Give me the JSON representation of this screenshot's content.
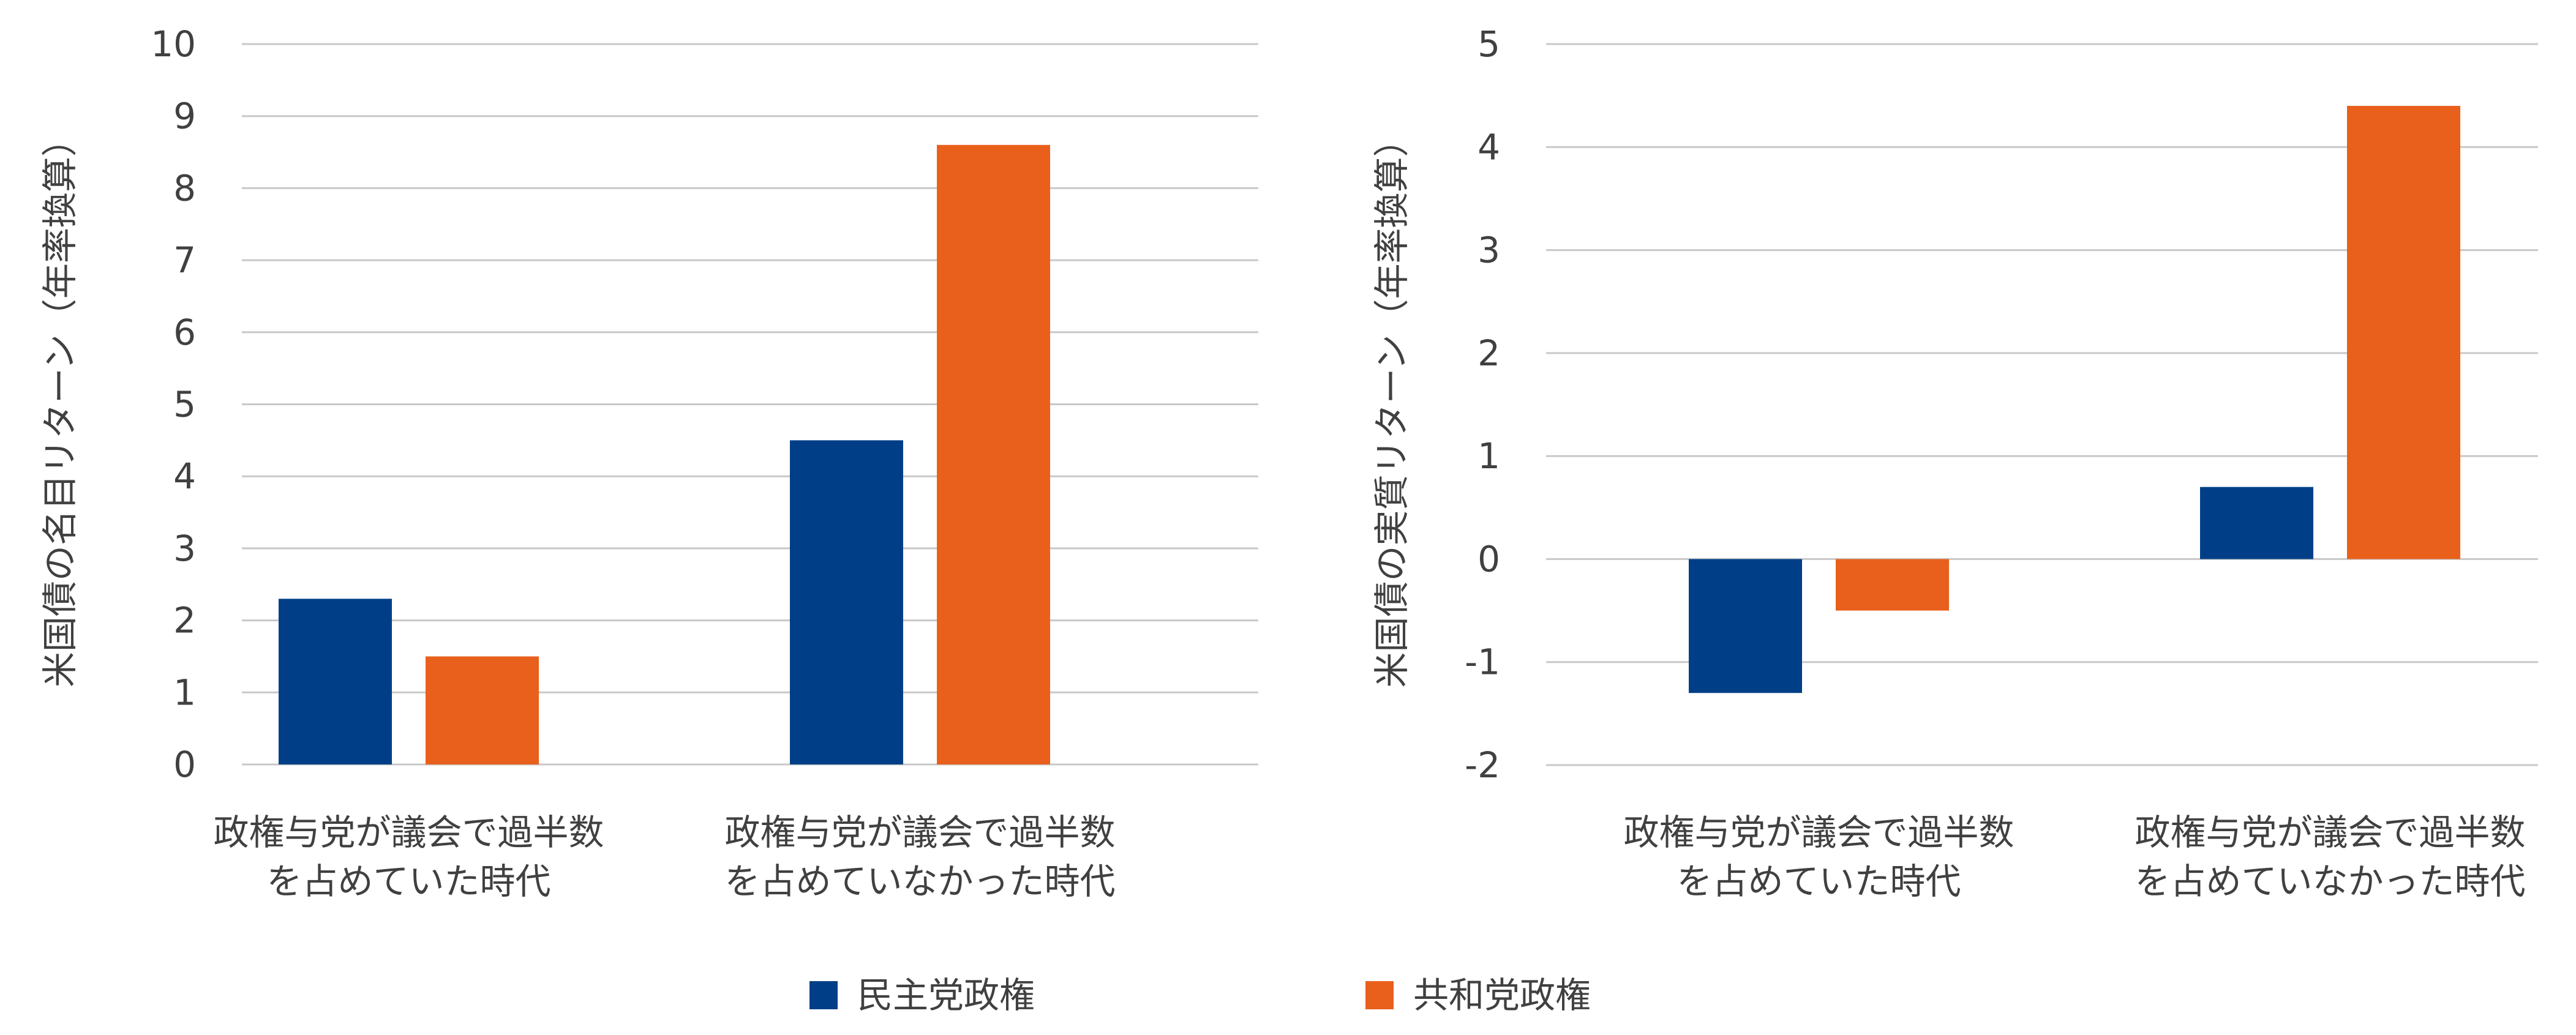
{
  "chart_data": [
    {
      "type": "bar",
      "categories": [
        [
          "政権与党が議会で過半数",
          "を占めていた時代"
        ],
        [
          "政権与党が議会で過半数",
          "を占めていなかった時代"
        ]
      ],
      "series": [
        {
          "name": "民主党政権",
          "values": [
            2.3,
            4.5
          ],
          "color": "#003f87"
        },
        {
          "name": "共和党政権",
          "values": [
            1.5,
            8.6
          ],
          "color": "#e8601c"
        }
      ],
      "ylabel": "米国債の名目リターン（年率換算）",
      "ylim": [
        0,
        10
      ],
      "yticks": [
        0,
        1,
        2,
        3,
        4,
        5,
        6,
        7,
        8,
        9,
        10
      ],
      "grid": true
    },
    {
      "type": "bar",
      "categories": [
        [
          "政権与党が議会で過半数",
          "を占めていた時代"
        ],
        [
          "政権与党が議会で過半数",
          "を占めていなかった時代"
        ]
      ],
      "series": [
        {
          "name": "民主党政権",
          "values": [
            -1.3,
            0.7
          ],
          "color": "#003f87"
        },
        {
          "name": "共和党政権",
          "values": [
            -0.5,
            4.4
          ],
          "color": "#e8601c"
        }
      ],
      "ylabel": "米国債の実質リターン（年率換算）",
      "ylim": [
        -2,
        5
      ],
      "yticks": [
        -2,
        -1,
        0,
        1,
        2,
        3,
        4,
        5
      ],
      "grid": true
    }
  ],
  "legend": {
    "placement": "bottom-center",
    "items": [
      {
        "name": "民主党政権",
        "color": "#003f87"
      },
      {
        "name": "共和党政権",
        "color": "#e8601c"
      }
    ]
  }
}
